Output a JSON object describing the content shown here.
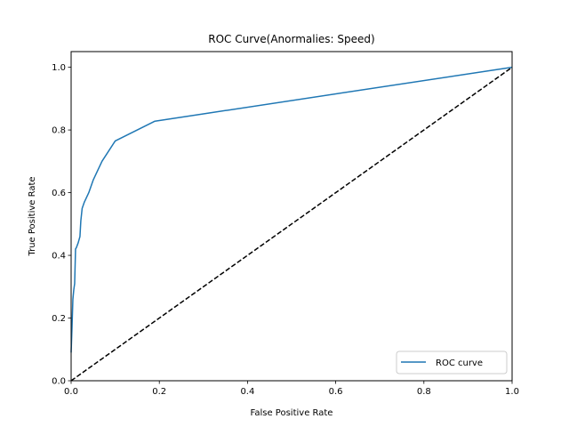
{
  "chart_data": {
    "type": "line",
    "title": "ROC Curve(Anormalies: Speed)",
    "xlabel": "False Positive Rate",
    "ylabel": "True Positive Rate",
    "xlim": [
      0,
      1
    ],
    "ylim": [
      0,
      1.05
    ],
    "x_ticks": [
      0.0,
      0.2,
      0.4,
      0.6,
      0.8,
      1.0
    ],
    "x_tick_labels": [
      "0.0",
      "0.2",
      "0.4",
      "0.6",
      "0.8",
      "1.0"
    ],
    "y_ticks": [
      0.0,
      0.2,
      0.4,
      0.6,
      0.8,
      1.0
    ],
    "y_tick_labels": [
      "0.0",
      "0.2",
      "0.4",
      "0.6",
      "0.8",
      "1.0"
    ],
    "grid": false,
    "legend_position": "lower-right",
    "series": [
      {
        "name": "ROC curve",
        "color": "#1f77b4",
        "style": "solid",
        "x": [
          0.0,
          0.002,
          0.004,
          0.006,
          0.008,
          0.01,
          0.012,
          0.016,
          0.02,
          0.022,
          0.025,
          0.03,
          0.04,
          0.05,
          0.07,
          0.1,
          0.19,
          1.0
        ],
        "y": [
          0.09,
          0.17,
          0.26,
          0.29,
          0.31,
          0.42,
          0.425,
          0.44,
          0.46,
          0.51,
          0.55,
          0.57,
          0.6,
          0.64,
          0.7,
          0.765,
          0.828,
          1.0
        ]
      },
      {
        "name": "",
        "color": "#000000",
        "style": "dashed",
        "x": [
          0.0,
          1.0
        ],
        "y": [
          0.0,
          1.0
        ]
      }
    ]
  }
}
